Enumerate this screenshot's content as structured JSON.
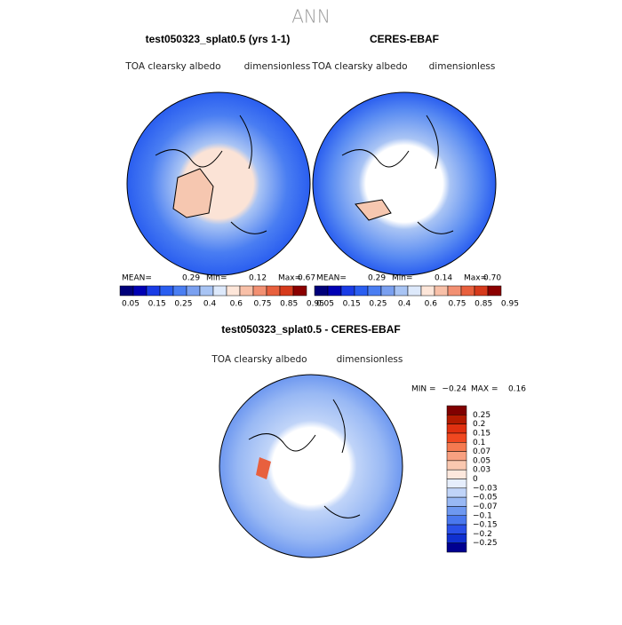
{
  "title": "ANN",
  "panels": [
    {
      "title": "test050323_splat0.5 (yrs 1-1)",
      "variable": "TOA clearsky albedo",
      "units": "dimensionless",
      "stats": {
        "mean_label": "MEAN=",
        "mean": "0.29",
        "min_label": "Min=",
        "min": "0.12",
        "max_label": "Max=",
        "max": "0.67"
      }
    },
    {
      "title": "CERES-EBAF",
      "variable": "TOA clearsky albedo",
      "units": "dimensionless",
      "stats": {
        "mean_label": "MEAN=",
        "mean": "0.29",
        "min_label": "Min=",
        "min": "0.14",
        "max_label": "Max=",
        "max": "0.70"
      }
    }
  ],
  "colorbar": {
    "labels": [
      "0.05",
      "0.15",
      "0.25",
      "0.4",
      "0.6",
      "0.75",
      "0.85",
      "0.95"
    ],
    "colors": [
      "#00007a",
      "#0000b4",
      "#1a3ce6",
      "#2a5ef0",
      "#4a7ef2",
      "#7aa0f0",
      "#a8c4f4",
      "#dde9fb",
      "#fde6d9",
      "#f8c0a8",
      "#f29072",
      "#e8603e",
      "#d63a1c",
      "#8b0000"
    ]
  },
  "difference": {
    "title": "test050323_splat0.5 - CERES-EBAF",
    "variable": "TOA clearsky albedo",
    "units": "dimensionless",
    "stats": {
      "min_label": "MIN =",
      "min": "−0.24",
      "max_label": "MAX =",
      "max": "0.16"
    },
    "colorbar": {
      "labels": [
        "0.25",
        "0.2",
        "0.15",
        "0.1",
        "0.07",
        "0.05",
        "0.03",
        "0",
        "−0.03",
        "−0.05",
        "−0.07",
        "−0.1",
        "−0.15",
        "−0.2",
        "−0.25"
      ],
      "colors": [
        "#800000",
        "#b31a00",
        "#e03010",
        "#f04820",
        "#f57a50",
        "#f8a080",
        "#fac8b0",
        "#fde8dd",
        "#e6eefc",
        "#c0d4f8",
        "#98b8f4",
        "#6e98f0",
        "#4a78ee",
        "#2a50e8",
        "#1030d0",
        "#000090"
      ]
    }
  }
}
